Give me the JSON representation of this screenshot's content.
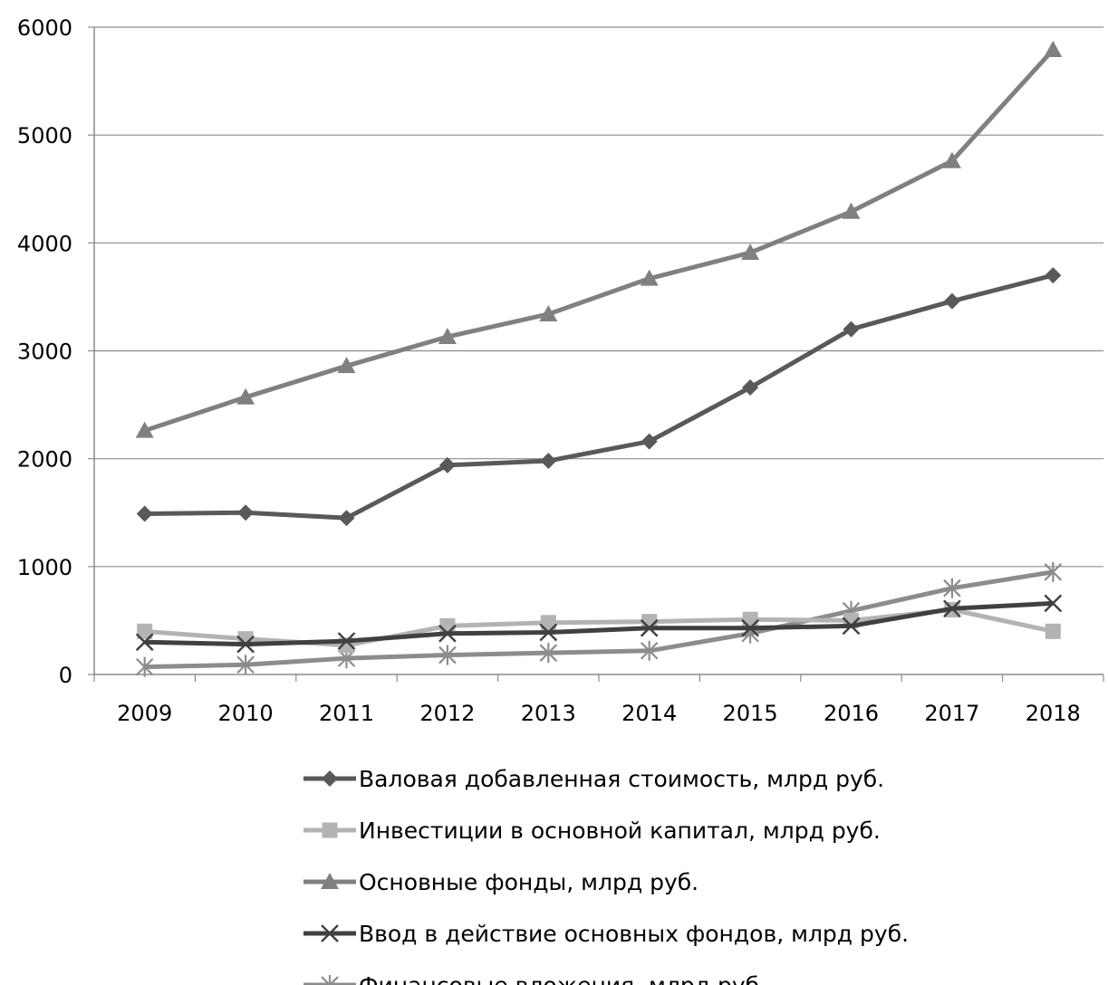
{
  "chart_data": {
    "type": "line",
    "categories": [
      "2009",
      "2010",
      "2011",
      "2012",
      "2013",
      "2014",
      "2015",
      "2016",
      "2017",
      "2018"
    ],
    "ylim": [
      0,
      6000
    ],
    "yticks": [
      "0",
      "1000",
      "2000",
      "3000",
      "4000",
      "5000",
      "6000"
    ],
    "grid": true,
    "legend_position": "bottom",
    "series": [
      {
        "name": "Валовая добавленная стоимость, млрд руб.",
        "marker": "diamond",
        "color": "#595959",
        "values": [
          1490,
          1500,
          1450,
          1940,
          1980,
          2160,
          2660,
          3200,
          3460,
          3700
        ]
      },
      {
        "name": "Инвестиции в основной капитал, млрд руб.",
        "marker": "square",
        "color": "#b3b3b3",
        "values": [
          400,
          330,
          270,
          450,
          480,
          490,
          510,
          500,
          600,
          400
        ]
      },
      {
        "name": "Основные фонды, млрд руб.",
        "marker": "triangle",
        "color": "#808080",
        "values": [
          2260,
          2570,
          2860,
          3130,
          3340,
          3670,
          3910,
          4290,
          4760,
          5790
        ]
      },
      {
        "name": "Ввод в действие основных фондов, млрд руб.",
        "marker": "x",
        "color": "#404040",
        "values": [
          300,
          280,
          310,
          380,
          390,
          430,
          430,
          450,
          610,
          660
        ]
      },
      {
        "name": "Финансовые вложения, млрд руб.",
        "marker": "star",
        "color": "#8c8c8c",
        "values": [
          70,
          90,
          150,
          180,
          200,
          220,
          380,
          590,
          800,
          950
        ]
      }
    ]
  }
}
